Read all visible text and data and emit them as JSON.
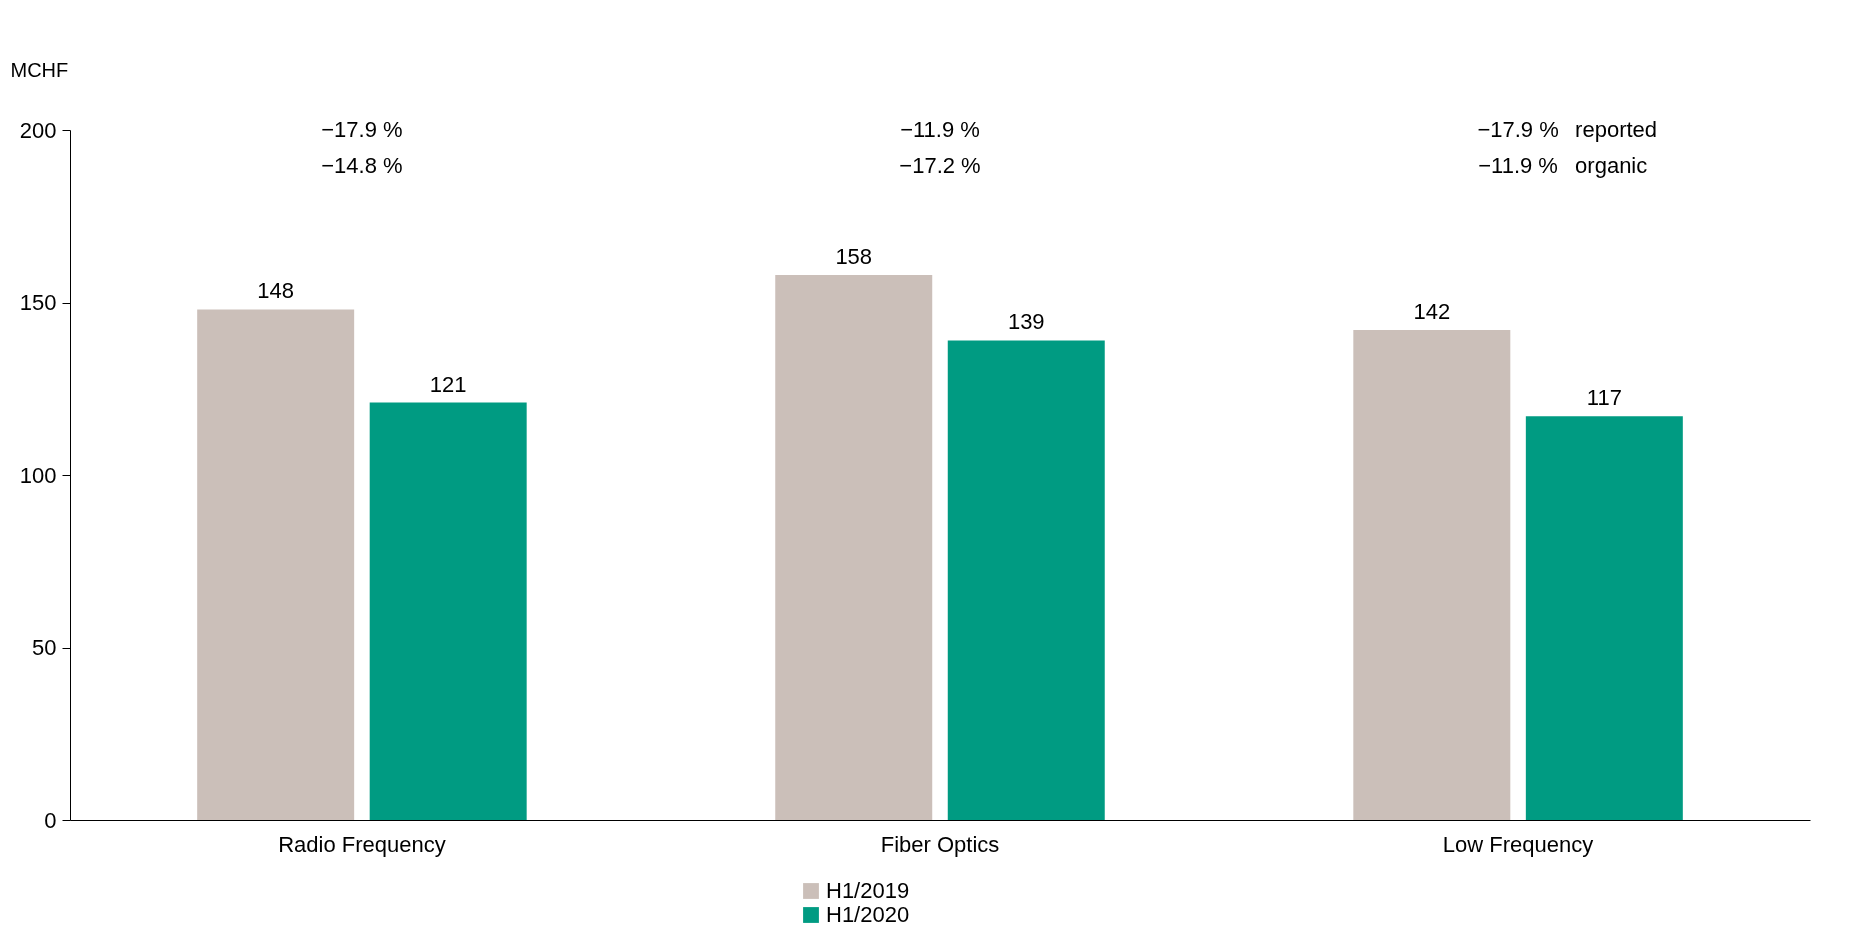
{
  "chart_data": {
    "type": "bar",
    "ylabel": "MCHF",
    "categories": [
      "Radio Frequency",
      "Fiber Optics",
      "Low Frequency"
    ],
    "series": [
      {
        "name": "H1/2019",
        "color": "#cbbfb9",
        "values": [
          148,
          158,
          142
        ]
      },
      {
        "name": "H1/2020",
        "color": "#009b82",
        "values": [
          121,
          139,
          117
        ]
      }
    ],
    "ylim": [
      0,
      200
    ],
    "yticks": [
      0,
      50,
      100,
      150,
      200
    ],
    "data_labels": true,
    "grid": false,
    "legend": "bottom",
    "annotations": [
      "−17.9 %",
      "−14.8 %",
      "−11.9 %",
      "−17.2 %",
      "−17.9 %",
      "−11.9 %",
      "reported",
      "organic"
    ]
  }
}
